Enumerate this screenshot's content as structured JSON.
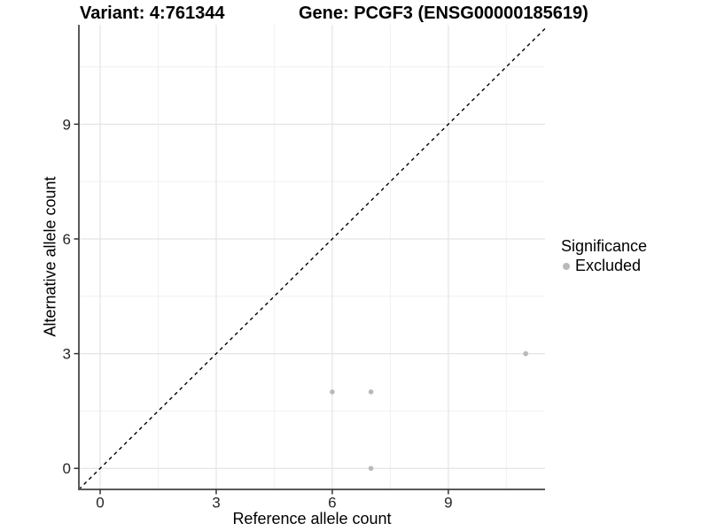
{
  "titles": {
    "variant": "Variant: 4:761344",
    "gene": "Gene: PCGF3 (ENSG00000185619)"
  },
  "axes": {
    "x_label": "Reference allele count",
    "y_label": "Alternative allele count"
  },
  "legend": {
    "title": "Significance",
    "items": [
      {
        "label": "Excluded",
        "color": "#b9b9b9"
      }
    ]
  },
  "colors": {
    "background": "#ffffff",
    "point_excluded": "#b9b9b9",
    "axis_line": "#595959",
    "tick_mark": "#333333",
    "tick_label": "#262626",
    "grid_major": "#e4e4e4",
    "grid_minor": "#f1f1f1",
    "identity_line": "#000000"
  },
  "chart_data": {
    "type": "scatter",
    "title": "Variant: 4:761344    Gene: PCGF3 (ENSG00000185619)",
    "xlabel": "Reference allele count",
    "ylabel": "Alternative allele count",
    "xlim": [
      -0.55,
      11.5
    ],
    "ylim": [
      -0.55,
      11.6
    ],
    "x_major_ticks": [
      0,
      3,
      6,
      9
    ],
    "y_major_ticks": [
      0,
      3,
      6,
      9
    ],
    "x_minor_ticks": [
      1.5,
      4.5,
      7.5,
      10.5
    ],
    "y_minor_ticks": [
      1.5,
      4.5,
      7.5,
      10.5
    ],
    "grid": true,
    "legend_position": "right",
    "reference_line": {
      "description": "y = x identity line",
      "slope": 1,
      "intercept": 0,
      "style": "dashed",
      "color": "#000000"
    },
    "series": [
      {
        "name": "Excluded",
        "color": "#b9b9b9",
        "points": [
          [
            6,
            2
          ],
          [
            7,
            2
          ],
          [
            7,
            0
          ],
          [
            11,
            3
          ]
        ]
      }
    ]
  }
}
